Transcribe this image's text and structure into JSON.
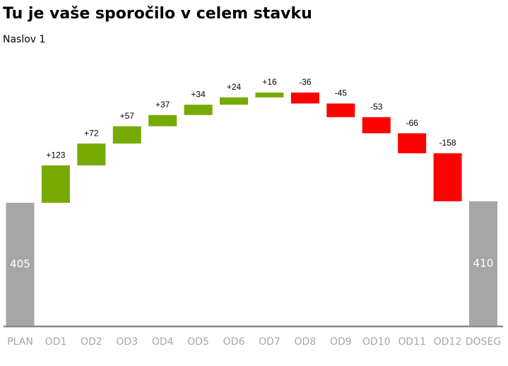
{
  "chart_data": {
    "type": "waterfall",
    "title": "Tu je vaše sporočilo v celem stavku",
    "subtitle": "Naslov 1",
    "categories": [
      "PLAN",
      "OD1",
      "OD2",
      "OD3",
      "OD4",
      "OD5",
      "OD6",
      "OD7",
      "OD8",
      "OD9",
      "OD10",
      "OD11",
      "OD12",
      "DOSEG"
    ],
    "values": [
      405,
      123,
      72,
      57,
      37,
      34,
      24,
      16,
      -36,
      -45,
      -53,
      -66,
      -158,
      410
    ],
    "value_labels": [
      "405",
      "+123",
      "+72",
      "+57",
      "+37",
      "+34",
      "+24",
      "+16",
      "-36",
      "-45",
      "-53",
      "-66",
      "-158",
      "410"
    ],
    "total_color": "#a6a6a6",
    "increase_color": "#77aa00",
    "decrease_color": "#ff0000"
  }
}
